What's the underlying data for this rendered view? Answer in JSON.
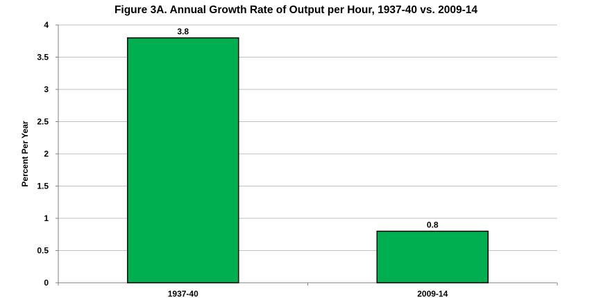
{
  "chart_data": {
    "type": "bar",
    "title": "Figure 3A. Annual Growth Rate of Output per Hour, 1937-40 vs. 2009-14",
    "xlabel": "",
    "ylabel": "Percent Per Year",
    "categories": [
      "1937-40",
      "2009-14"
    ],
    "values": [
      3.8,
      0.8
    ],
    "data_labels": [
      "3.8",
      "0.8"
    ],
    "ylim": [
      0,
      4
    ],
    "yticks": [
      "0",
      "0.5",
      "1",
      "1.5",
      "2",
      "2.5",
      "3",
      "3.5",
      "4"
    ],
    "grid": true,
    "legend": "none",
    "bar_color": "#00b050",
    "bar_edge": "#000000",
    "grid_color": "#bfbfbf"
  }
}
